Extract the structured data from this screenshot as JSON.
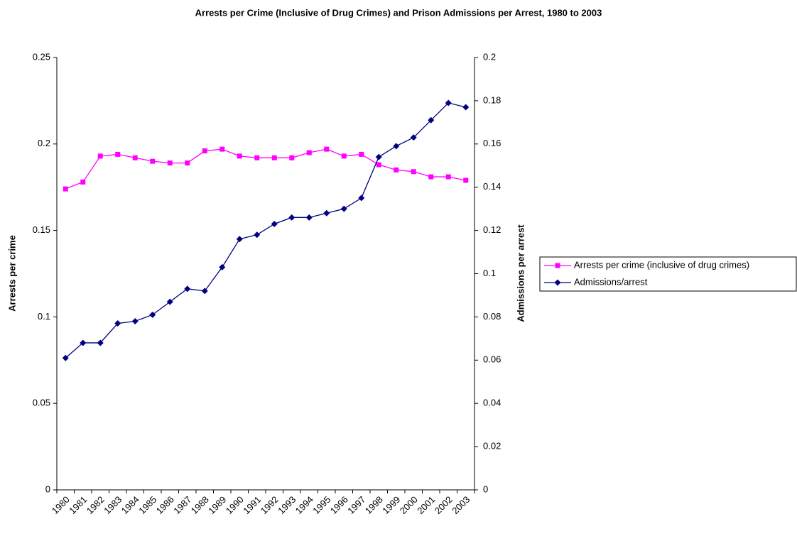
{
  "chart_data": {
    "type": "line",
    "title": "Arrests per  Crime (Inclusive of Drug Crimes) and Prison Admissions per Arrest, 1980 to 2003",
    "y_label": "Arrests per crime",
    "y2_label": "Admissions per arrest",
    "categories": [
      "1980",
      "1981",
      "1982",
      "1983",
      "1984",
      "1985",
      "1986",
      "1987",
      "1988",
      "1989",
      "1990",
      "1991",
      "1992",
      "1993",
      "1994",
      "1995",
      "1996",
      "1997",
      "1998",
      "1999",
      "2000",
      "2001",
      "2002",
      "2003"
    ],
    "series": [
      {
        "name": "Arrests per crime (inclusive of drug crimes)",
        "color": "#ff00ff",
        "marker": "square",
        "values": [
          0.174,
          0.178,
          0.193,
          0.194,
          0.192,
          0.19,
          0.189,
          0.189,
          0.196,
          0.197,
          0.193,
          0.192,
          0.192,
          0.192,
          0.195,
          0.197,
          0.193,
          0.194,
          0.188,
          0.185,
          0.184,
          0.181,
          0.181,
          0.179
        ]
      },
      {
        "name": "Admissions/arrest",
        "color": "#000080",
        "marker": "diamond",
        "axis": "y2",
        "values": [
          0.061,
          0.068,
          0.068,
          0.077,
          0.078,
          0.081,
          0.087,
          0.093,
          0.092,
          0.103,
          0.116,
          0.118,
          0.123,
          0.126,
          0.126,
          0.128,
          0.13,
          0.135,
          0.154,
          0.159,
          0.163,
          0.171,
          0.179,
          0.177
        ]
      }
    ],
    "ylim": [
      0,
      0.25
    ],
    "yticks": [
      0,
      0.05,
      0.1,
      0.15,
      0.2,
      0.25
    ],
    "y2lim": [
      0,
      0.2
    ],
    "y2ticks": [
      0,
      0.02,
      0.04,
      0.06,
      0.08,
      0.1,
      0.12,
      0.14,
      0.16,
      0.18,
      0.2
    ],
    "legend": "right"
  }
}
